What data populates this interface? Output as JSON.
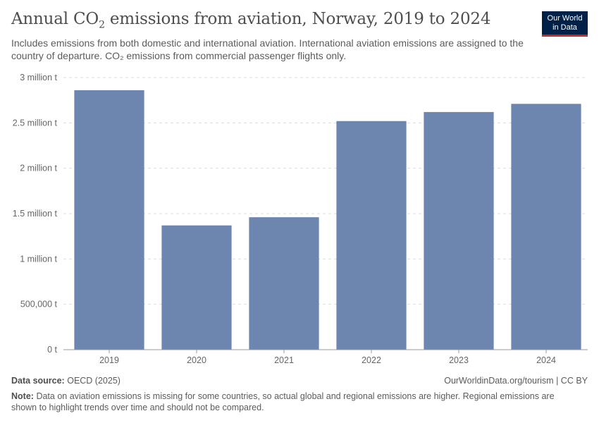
{
  "header": {
    "title_prefix": "Annual CO",
    "title_sub": "2",
    "title_suffix": " emissions from aviation, Norway, 2019 to 2024",
    "subtitle": "Includes emissions from both domestic and international aviation. International aviation emissions are assigned to the country of departure. CO₂ emissions from commercial passenger flights only."
  },
  "logo": {
    "line1": "Our World",
    "line2": "in Data",
    "bg_color": "#002147",
    "accent_color": "#ce261e"
  },
  "chart_data": {
    "type": "bar",
    "title": "Annual CO₂ emissions from aviation, Norway, 2019 to 2024",
    "categories": [
      "2019",
      "2020",
      "2021",
      "2022",
      "2023",
      "2024"
    ],
    "values": [
      2860000,
      1370000,
      1460000,
      2520000,
      2620000,
      2710000
    ],
    "unit": "t",
    "ylim": [
      0,
      3000000
    ],
    "yticks": [
      0,
      500000,
      1000000,
      1500000,
      2000000,
      2500000,
      3000000
    ],
    "ytick_labels": [
      "0 t",
      "500,000 t",
      "1 million t",
      "1.5 million t",
      "2 million t",
      "2.5 million t",
      "3 million t"
    ],
    "xlabel": "",
    "ylabel": "",
    "grid": true,
    "bar_color": "#6c86b0"
  },
  "footer": {
    "source_label": "Data source:",
    "source_value": "OECD (2025)",
    "url": "OurWorldinData.org/tourism | CC BY",
    "note_label": "Note:",
    "note_text": "Data on aviation emissions is missing for some countries, so actual global and regional emissions are higher. Regional emissions are shown to highlight trends over time and should not be compared."
  }
}
